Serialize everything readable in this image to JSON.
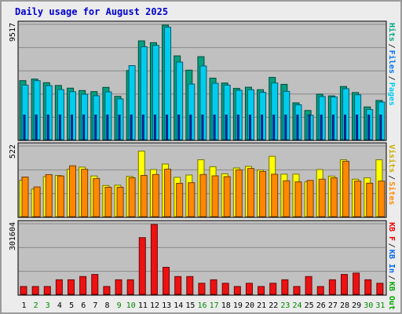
{
  "chart_data": {
    "type": "bar",
    "title": "Daily usage for August 2025",
    "days": [
      "1",
      "2",
      "3",
      "4",
      "5",
      "6",
      "7",
      "8",
      "9",
      "10",
      "11",
      "12",
      "13",
      "14",
      "15",
      "16",
      "17",
      "18",
      "19",
      "20",
      "21",
      "22",
      "23",
      "24",
      "25",
      "26",
      "27",
      "28",
      "29",
      "30",
      "31"
    ],
    "weekend_days": [
      "2",
      "3",
      "9",
      "10",
      "16",
      "17",
      "23",
      "24",
      "30",
      "31"
    ],
    "panels": [
      {
        "max_label": "9517",
        "ymax": 9517,
        "legend": [
          {
            "text": "Hits",
            "color": "#00aa88"
          },
          {
            "text": "Files",
            "color": "#0077ee"
          },
          {
            "text": "Pages",
            "color": "#00ccee"
          }
        ],
        "series": [
          {
            "name": "Hits",
            "color": "#00a080",
            "values": [
              4908,
              5037,
              4738,
              4507,
              4283,
              4086,
              3997,
              4349,
              3603,
              5745,
              8209,
              8060,
              9517,
              6965,
              5778,
              6898,
              5113,
              4708,
              4261,
              4359,
              4155,
              5176,
              4600,
              3063,
              2428,
              3782,
              3639,
              4419,
              3917,
              2723,
              3260
            ]
          },
          {
            "name": "Files",
            "color": "#00ccee",
            "values": [
              4530,
              4907,
              4490,
              4164,
              3990,
              3775,
              3653,
              3970,
              3391,
              6154,
              7719,
              7835,
              9341,
              6447,
              4623,
              6128,
              4690,
              4530,
              4108,
              4149,
              3935,
              4713,
              4015,
              2904,
              2032,
              3590,
              3553,
              4237,
              3734,
              2509,
              3129
            ]
          },
          {
            "name": "Pages",
            "color": "#0033cc",
            "values": [
              2050,
              2050,
              2050,
              2050,
              2050,
              2050,
              2050,
              2050,
              2050,
              2050,
              2050,
              2050,
              2050,
              2050,
              2050,
              2050,
              2050,
              2050,
              2050,
              2050,
              2050,
              2050,
              2050,
              2050,
              2050,
              2050,
              2050,
              2050,
              2050,
              2050,
              2050
            ]
          }
        ]
      },
      {
        "max_label": "522",
        "ymax": 522,
        "legend": [
          {
            "text": "Visits",
            "color": "#ccaa00"
          },
          {
            "text": "Sites",
            "color": "#ff8800"
          }
        ],
        "series": [
          {
            "name": "Visits",
            "color": "#ffff00",
            "values": [
              272,
              206,
              299,
              308,
              354,
              370,
              304,
              233,
              235,
              301,
              490,
              352,
              393,
              294,
              311,
              425,
              373,
              320,
              364,
              376,
              348,
              451,
              318,
              318,
              260,
              352,
              303,
              425,
              280,
              290,
              425
            ]
          },
          {
            "name": "Sites",
            "color": "#ff8800",
            "values": [
              296,
              222,
              314,
              304,
              380,
              354,
              285,
              220,
              220,
              291,
              308,
              315,
              355,
              249,
              254,
              315,
              305,
              299,
              350,
              360,
              337,
              317,
              268,
              260,
              271,
              280,
              290,
              414,
              266,
              250,
              266
            ]
          }
        ]
      },
      {
        "max_label": "301604",
        "ymax": 301604,
        "legend": [
          {
            "text": "KB F",
            "color": "#ee0000"
          },
          {
            "text": "KB In",
            "color": "#0066ee"
          },
          {
            "text": "KB Out",
            "color": "#00aa00"
          }
        ],
        "series": [
          {
            "name": "KB F",
            "color": "#ee1111",
            "values": [
              34000,
              34000,
              34000,
              63000,
              63000,
              77000,
              86000,
              34000,
              63000,
              63000,
              245000,
              301604,
              117000,
              77000,
              77000,
              48000,
              63000,
              48000,
              34000,
              48000,
              34000,
              48000,
              63000,
              34000,
              77000,
              34000,
              63000,
              86000,
              92000,
              63000,
              48000
            ]
          }
        ]
      }
    ]
  }
}
